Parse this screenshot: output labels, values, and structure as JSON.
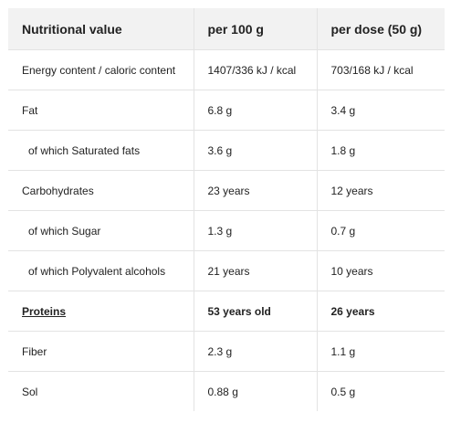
{
  "header": {
    "col1": "Nutritional value",
    "col2": "per 100 g",
    "col3": "per dose (50 g)"
  },
  "rows": [
    {
      "label": "Energy content / caloric content",
      "per100": "1407/336 kJ / kcal",
      "perDose": "703/168 kJ / kcal"
    },
    {
      "label": "Fat",
      "per100": "6.8 g",
      "perDose": "3.4 g"
    },
    {
      "label": "of which Saturated fats",
      "per100": "3.6 g",
      "perDose": "1.8 g"
    },
    {
      "label": "Carbohydrates",
      "per100": "23 years",
      "perDose": "12 years"
    },
    {
      "label": "of which Sugar",
      "per100": "1.3 g",
      "perDose": "0.7 g"
    },
    {
      "label": "of which Polyvalent alcohols",
      "per100": "21 years",
      "perDose": "10 years"
    },
    {
      "label": "Proteins",
      "per100": "53 years old",
      "perDose": "26 years"
    },
    {
      "label": "Fiber",
      "per100": "2.3 g",
      "perDose": "1.1 g"
    },
    {
      "label": "Sol",
      "per100": "0.88 g",
      "perDose": "0.5 g"
    }
  ]
}
